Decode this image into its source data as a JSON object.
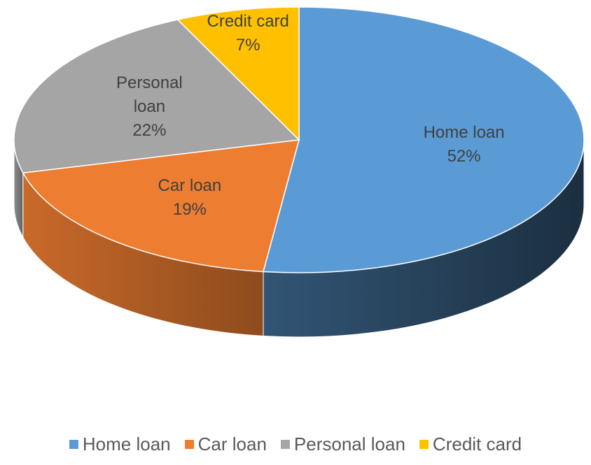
{
  "chart_data": {
    "type": "pie3d",
    "categories": [
      "Home loan",
      "Car loan",
      "Personal loan",
      "Credit card"
    ],
    "values": [
      52,
      19,
      22,
      7
    ],
    "value_labels": [
      "52%",
      "19%",
      "22%",
      "7%"
    ],
    "colors": [
      "#5b9bd5",
      "#ed7d31",
      "#a5a5a5",
      "#ffc000"
    ],
    "legend": "bottom"
  }
}
